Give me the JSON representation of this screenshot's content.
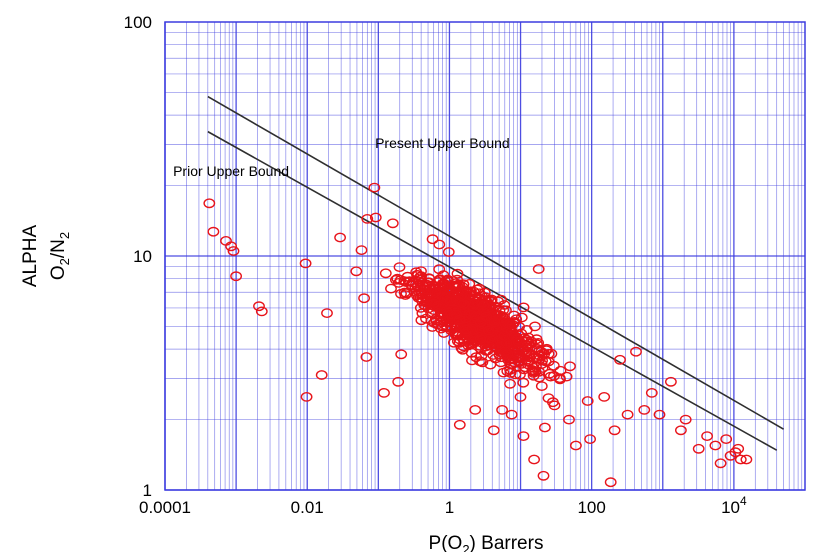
{
  "chart_data": {
    "type": "scatter",
    "title": "",
    "xlabel": {
      "pre": "P(O",
      "sub": "2",
      "post": ") Barrers"
    },
    "ylabel": {
      "line1": "ALPHA",
      "line2": {
        "a": "O",
        "a_sub": "2",
        "b": "/N",
        "b_sub": "2"
      }
    },
    "x_scale": "log",
    "y_scale": "log",
    "xlim": [
      0.0001,
      100000
    ],
    "ylim": [
      1,
      100
    ],
    "grid": true,
    "x_ticks": [
      {
        "value": 0.0001,
        "label": "0.0001"
      },
      {
        "value": 0.01,
        "label": "0.01"
      },
      {
        "value": 1,
        "label": "1"
      },
      {
        "value": 100,
        "label": "100"
      },
      {
        "value": 10000,
        "base": "10",
        "exp": "4"
      }
    ],
    "y_ticks": [
      {
        "value": 1,
        "label": "1"
      },
      {
        "value": 10,
        "label": "10"
      },
      {
        "value": 100,
        "label": "100"
      }
    ],
    "colors": {
      "grid": "#3b3bdf",
      "points": "#e8141b",
      "bounds": "#2f2f2f"
    },
    "upper_bounds": [
      {
        "name": "Present Upper Bound",
        "points": [
          [
            0.0004,
            48
          ],
          [
            50000,
            1.82
          ]
        ]
      },
      {
        "name": "Prior Upper Bound",
        "points": [
          [
            0.0004,
            34
          ],
          [
            40000,
            1.48
          ]
        ]
      }
    ],
    "annotations": [
      {
        "text": "Present Upper Bound",
        "x": 0.09,
        "y": 29
      },
      {
        "text": "Prior Upper Bound",
        "x": 0.00013,
        "y": 22
      }
    ],
    "series": [
      {
        "marker": "open-circle",
        "points": [
          [
            0.00042,
            16.8
          ],
          [
            0.00048,
            12.7
          ],
          [
            0.00072,
            11.6
          ],
          [
            0.00085,
            11.0
          ],
          [
            0.00092,
            10.5
          ],
          [
            0.001,
            8.2
          ],
          [
            0.0021,
            6.1
          ],
          [
            0.0023,
            5.8
          ],
          [
            0.0095,
            9.3
          ],
          [
            0.0098,
            2.5
          ],
          [
            0.016,
            3.1
          ],
          [
            0.019,
            5.7
          ],
          [
            0.029,
            12.0
          ],
          [
            0.049,
            8.6
          ],
          [
            0.058,
            10.6
          ],
          [
            0.063,
            6.6
          ],
          [
            0.068,
            3.7
          ],
          [
            0.07,
            14.4
          ],
          [
            0.088,
            19.6
          ],
          [
            0.092,
            14.6
          ],
          [
            0.12,
            2.6
          ],
          [
            0.16,
            13.8
          ],
          [
            0.19,
            2.9
          ],
          [
            0.21,
            3.8
          ],
          [
            0.58,
            11.8
          ],
          [
            0.72,
            11.2
          ],
          [
            0.98,
            10.4
          ],
          [
            1.3,
            8.4
          ],
          [
            1.9,
            7.6
          ],
          [
            1.4,
            1.9
          ],
          [
            2.3,
            2.2
          ],
          [
            4.2,
            1.8
          ],
          [
            5.5,
            2.2
          ],
          [
            7.5,
            2.1
          ],
          [
            11.0,
            1.7
          ],
          [
            15.5,
            1.35
          ],
          [
            18.0,
            8.8
          ],
          [
            21.0,
            1.15
          ],
          [
            22.0,
            1.85
          ],
          [
            30.0,
            2.3
          ],
          [
            48.0,
            2.0
          ],
          [
            60.0,
            1.55
          ],
          [
            88.0,
            2.4
          ],
          [
            95.0,
            1.65
          ],
          [
            150.0,
            2.5
          ],
          [
            185.0,
            1.08
          ],
          [
            210.0,
            1.8
          ],
          [
            250.0,
            3.6
          ],
          [
            320.0,
            2.1
          ],
          [
            420.0,
            3.9
          ],
          [
            550.0,
            2.2
          ],
          [
            700.0,
            2.6
          ],
          [
            900.0,
            2.1
          ],
          [
            1300.0,
            2.9
          ],
          [
            1800.0,
            1.8
          ],
          [
            2100.0,
            2.0
          ],
          [
            3200.0,
            1.5
          ],
          [
            4200.0,
            1.7
          ],
          [
            5500.0,
            1.55
          ],
          [
            6500.0,
            1.3
          ],
          [
            7800.0,
            1.65
          ],
          [
            9000.0,
            1.4
          ],
          [
            10500.0,
            1.45
          ],
          [
            12500.0,
            1.35
          ],
          [
            15000.0,
            1.35
          ],
          [
            11500.0,
            1.5
          ]
        ],
        "cluster": {
          "center": [
            2.5,
            5.2
          ],
          "count": 950,
          "seed": 7
        }
      }
    ]
  }
}
